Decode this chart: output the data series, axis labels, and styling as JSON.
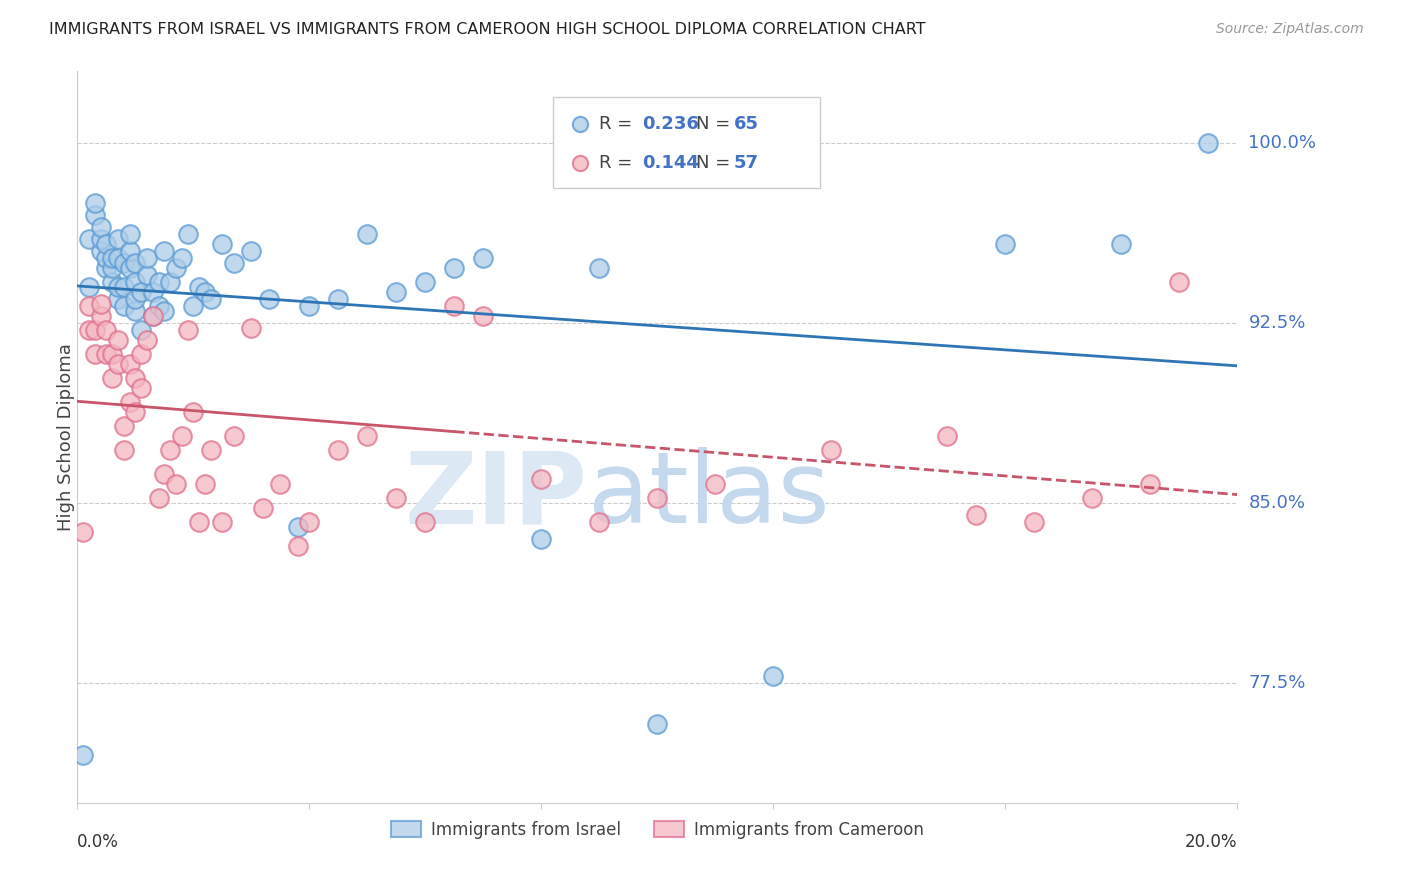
{
  "title": "IMMIGRANTS FROM ISRAEL VS IMMIGRANTS FROM CAMEROON HIGH SCHOOL DIPLOMA CORRELATION CHART",
  "source": "Source: ZipAtlas.com",
  "ylabel": "High School Diploma",
  "ytick_labels": [
    "100.0%",
    "92.5%",
    "85.0%",
    "77.5%"
  ],
  "ytick_values": [
    1.0,
    0.925,
    0.85,
    0.775
  ],
  "xmin": 0.0,
  "xmax": 0.2,
  "ymin": 0.725,
  "ymax": 1.03,
  "israel_color": "#aecde8",
  "israel_edge_color": "#5b9bd5",
  "cameroon_color": "#f4b8c1",
  "cameroon_edge_color": "#e07090",
  "israel_R": 0.236,
  "israel_N": 65,
  "cameroon_R": 0.144,
  "cameroon_N": 57,
  "trend_israel_color": "#2e75b6",
  "trend_cameroon_color": "#c9556a",
  "watermark_zip_color": "#dce9f5",
  "watermark_atlas_color": "#c5d9ee",
  "israel_x": [
    0.001,
    0.002,
    0.002,
    0.003,
    0.003,
    0.004,
    0.004,
    0.004,
    0.005,
    0.005,
    0.005,
    0.006,
    0.006,
    0.006,
    0.007,
    0.007,
    0.007,
    0.007,
    0.008,
    0.008,
    0.008,
    0.009,
    0.009,
    0.009,
    0.01,
    0.01,
    0.01,
    0.01,
    0.011,
    0.011,
    0.012,
    0.012,
    0.013,
    0.013,
    0.014,
    0.014,
    0.015,
    0.015,
    0.016,
    0.017,
    0.018,
    0.019,
    0.02,
    0.021,
    0.022,
    0.023,
    0.025,
    0.027,
    0.03,
    0.033,
    0.038,
    0.04,
    0.045,
    0.05,
    0.055,
    0.06,
    0.065,
    0.07,
    0.08,
    0.09,
    0.1,
    0.12,
    0.16,
    0.18,
    0.195
  ],
  "israel_y": [
    0.745,
    0.96,
    0.94,
    0.97,
    0.975,
    0.955,
    0.96,
    0.965,
    0.948,
    0.952,
    0.958,
    0.942,
    0.948,
    0.952,
    0.935,
    0.94,
    0.952,
    0.96,
    0.932,
    0.94,
    0.95,
    0.948,
    0.955,
    0.962,
    0.93,
    0.935,
    0.942,
    0.95,
    0.922,
    0.938,
    0.945,
    0.952,
    0.938,
    0.928,
    0.932,
    0.942,
    0.955,
    0.93,
    0.942,
    0.948,
    0.952,
    0.962,
    0.932,
    0.94,
    0.938,
    0.935,
    0.958,
    0.95,
    0.955,
    0.935,
    0.84,
    0.932,
    0.935,
    0.962,
    0.938,
    0.942,
    0.948,
    0.952,
    0.835,
    0.948,
    0.758,
    0.778,
    0.958,
    0.958,
    1.0
  ],
  "cameroon_x": [
    0.001,
    0.002,
    0.002,
    0.003,
    0.003,
    0.004,
    0.004,
    0.005,
    0.005,
    0.006,
    0.006,
    0.007,
    0.007,
    0.008,
    0.008,
    0.009,
    0.009,
    0.01,
    0.01,
    0.011,
    0.011,
    0.012,
    0.013,
    0.014,
    0.015,
    0.016,
    0.017,
    0.018,
    0.019,
    0.02,
    0.021,
    0.022,
    0.023,
    0.025,
    0.027,
    0.03,
    0.032,
    0.035,
    0.038,
    0.04,
    0.045,
    0.05,
    0.055,
    0.06,
    0.065,
    0.07,
    0.08,
    0.09,
    0.1,
    0.11,
    0.13,
    0.15,
    0.165,
    0.175,
    0.185,
    0.19,
    0.155
  ],
  "cameroon_y": [
    0.838,
    0.922,
    0.932,
    0.912,
    0.922,
    0.928,
    0.933,
    0.912,
    0.922,
    0.902,
    0.912,
    0.908,
    0.918,
    0.872,
    0.882,
    0.892,
    0.908,
    0.888,
    0.902,
    0.898,
    0.912,
    0.918,
    0.928,
    0.852,
    0.862,
    0.872,
    0.858,
    0.878,
    0.922,
    0.888,
    0.842,
    0.858,
    0.872,
    0.842,
    0.878,
    0.923,
    0.848,
    0.858,
    0.832,
    0.842,
    0.872,
    0.878,
    0.852,
    0.842,
    0.932,
    0.928,
    0.86,
    0.842,
    0.852,
    0.858,
    0.872,
    0.878,
    0.842,
    0.852,
    0.858,
    0.942,
    0.845
  ]
}
